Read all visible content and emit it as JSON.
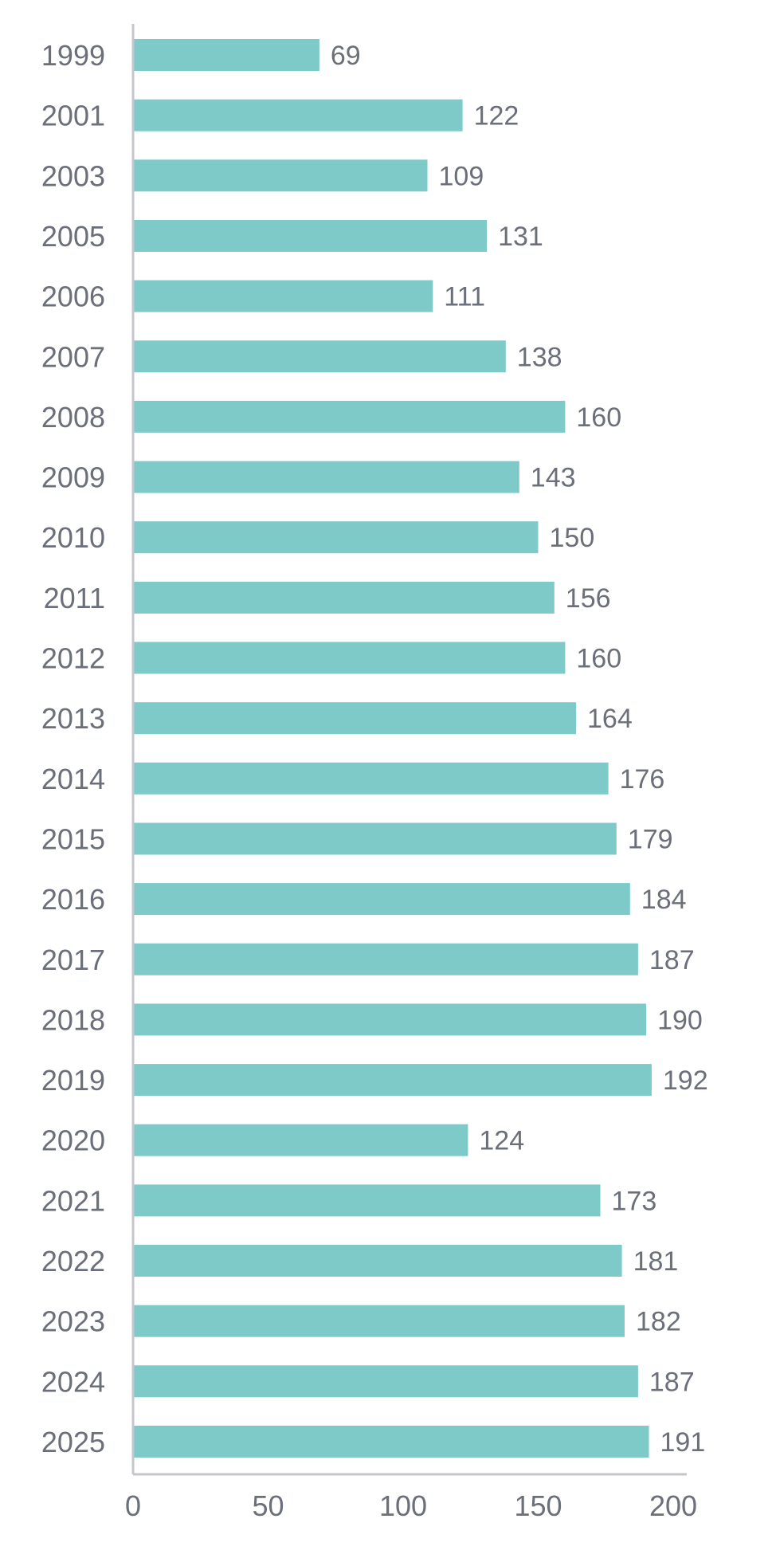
{
  "chart_data": {
    "type": "bar",
    "orientation": "horizontal",
    "categories": [
      "1999",
      "2001",
      "2003",
      "2005",
      "2006",
      "2007",
      "2008",
      "2009",
      "2010",
      "2011",
      "2012",
      "2013",
      "2014",
      "2015",
      "2016",
      "2017",
      "2018",
      "2019",
      "2020",
      "2021",
      "2022",
      "2023",
      "2024",
      "2025"
    ],
    "values": [
      69,
      122,
      109,
      131,
      111,
      138,
      160,
      143,
      150,
      156,
      160,
      164,
      176,
      179,
      184,
      187,
      190,
      192,
      124,
      173,
      181,
      182,
      187,
      191
    ],
    "value_labels": [
      "69",
      "122",
      "109",
      "131",
      "111",
      "138",
      "160",
      "143",
      "150",
      "156",
      "160",
      "164",
      "176",
      "179",
      "184",
      "187",
      "190",
      "192",
      "124",
      "173",
      "181",
      "182",
      "187",
      "191"
    ],
    "x_ticks": [
      "0",
      "50",
      "100",
      "150",
      "200"
    ],
    "xlim": [
      0,
      200
    ],
    "title": "",
    "xlabel": "",
    "ylabel": "",
    "grid": false,
    "legend": "none",
    "colors": {
      "bar": "#7ecac8",
      "axis": "#c4c6cc",
      "text": "#6b6f7a"
    }
  }
}
